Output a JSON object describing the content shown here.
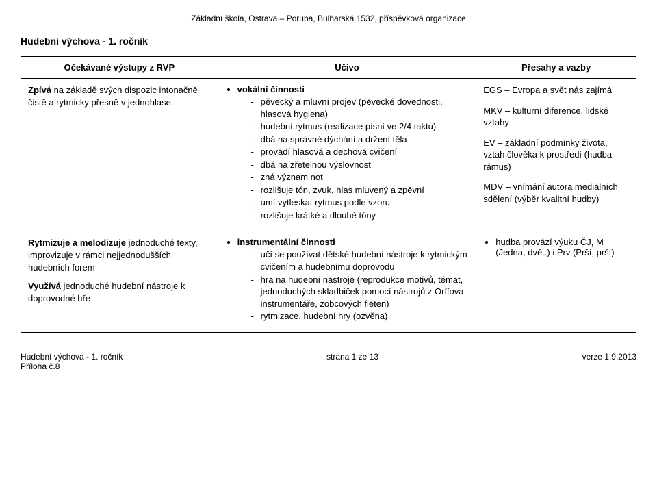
{
  "header": {
    "school": "Základní škola, Ostrava – Poruba, Bulharská 1532, příspěvková organizace"
  },
  "title": "Hudební výchova - 1. ročník",
  "table": {
    "headers": {
      "col1": "Očekávané výstupy z RVP",
      "col2": "Učivo",
      "col3": "Přesahy a vazby"
    },
    "rows": [
      {
        "col1": [
          {
            "bold": "Zpívá",
            "text": " na základě svých dispozic intonačně čistě a rytmicky přesně v jednohlase."
          }
        ],
        "col2": {
          "bullets": [
            {
              "head": "vokální činnosti",
              "items": [
                "pěvecký a mluvní projev (pěvecké dovednosti, hlasová hygiena)",
                "hudební rytmus (realizace písní ve 2/4 taktu)",
                "dbá na správné dýchání a držení těla",
                "provádí hlasová a dechová cvičení",
                "dbá na zřetelnou výslovnost",
                "zná význam not",
                "rozlišuje tón, zvuk, hlas mluvený a zpěvní",
                "umí vytleskat rytmus podle vzoru",
                "rozlišuje krátké a dlouhé tóny"
              ]
            }
          ]
        },
        "col3": [
          "EGS – Evropa a svět nás zajímá",
          "MKV – kulturní diference, lidské vztahy",
          "EV – základní podmínky života, vztah člověka k prostředí (hudba – rámus)",
          "MDV – vnímání autora mediálních sdělení (výběr kvalitní hudby)"
        ]
      },
      {
        "col1": [
          {
            "bold": "Rytmizuje a melodizuje",
            "text": " jednoduché texty, improvizuje v rámci nejjednodušších hudebních forem"
          },
          {
            "bold": "Využívá",
            "text": " jednoduché hudební nástroje k doprovodné hře"
          }
        ],
        "col2": {
          "bullets": [
            {
              "head": "instrumentální činnosti",
              "items": [
                "učí se používat dětské hudební nástroje k rytmickým cvičením a hudebnímu doprovodu",
                "hra na hudební nástroje (reprodukce motivů, témat, jednoduchých skladbiček pomocí nástrojů z Orffova instrumentáře, zobcových fléten)",
                "rytmizace, hudební hry (ozvěna)"
              ]
            }
          ]
        },
        "col3_bullets": [
          "hudba provází výuku ČJ, M (Jedna, dvě..) i Prv (Prší, prší)"
        ]
      }
    ]
  },
  "footer": {
    "left1": "Hudební výchova - 1. ročník",
    "left2": "Příloha č.8",
    "center": "strana 1 ze 13",
    "right": "verze 1.9.2013"
  }
}
